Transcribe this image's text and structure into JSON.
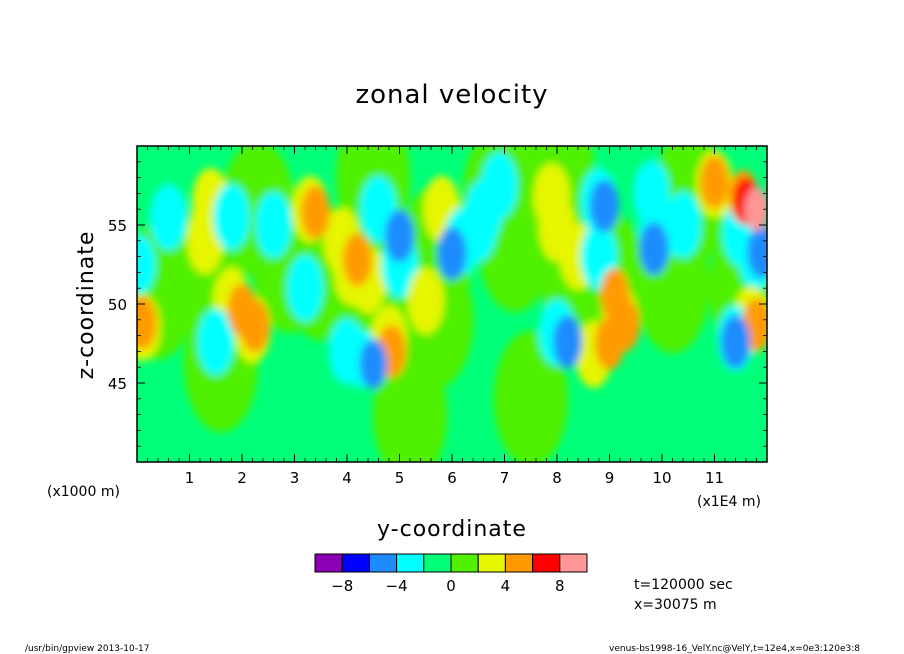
{
  "chart_data": {
    "type": "heatmap",
    "title": "zonal velocity",
    "xlabel": "y-coordinate",
    "ylabel": "z-coordinate",
    "x_unit_note": "(x1000 m)",
    "x_unit_note_right": "(x1E4 m)",
    "xlim": [
      0,
      12
    ],
    "ylim": [
      40,
      60
    ],
    "x_ticks": [
      1,
      2,
      3,
      4,
      5,
      6,
      7,
      8,
      9,
      10,
      11
    ],
    "x_tick_labels": [
      "1",
      "2",
      "3",
      "4",
      "5",
      "6",
      "7",
      "8",
      "9",
      "10",
      "11"
    ],
    "y_ticks": [
      45,
      50,
      55
    ],
    "y_tick_labels": [
      "45",
      "50",
      "55"
    ],
    "colorbar": {
      "levels": [
        -10,
        -8,
        -6,
        -4,
        -2,
        0,
        2,
        4,
        6,
        8,
        10
      ],
      "colors": [
        "#8c00b4",
        "#0000ff",
        "#1e8cff",
        "#00ffff",
        "#00ff78",
        "#50f000",
        "#e6f500",
        "#ff9b00",
        "#ff0000",
        "#ff9696"
      ],
      "tick_values": [
        -8,
        -4,
        0,
        4,
        8
      ],
      "tick_labels": [
        "−8",
        "−4",
        "0",
        "4",
        "8"
      ]
    },
    "background_value": -1,
    "features": [
      {
        "y": 0.6,
        "z": 55.5,
        "value": -3
      },
      {
        "y": 0.05,
        "z": 52.5,
        "value": -4
      },
      {
        "y": 0.4,
        "z": 50.8,
        "value": 1
      },
      {
        "y": 1.4,
        "z": 56.5,
        "value": 3
      },
      {
        "y": 1.3,
        "z": 54.0,
        "value": 3
      },
      {
        "y": 1.3,
        "z": 52.0,
        "value": 1
      },
      {
        "y": 1.8,
        "z": 50.2,
        "value": 3
      },
      {
        "y": 2.0,
        "z": 49.6,
        "value": 5
      },
      {
        "y": 2.2,
        "z": 48.4,
        "value": 3
      },
      {
        "y": 2.25,
        "z": 48.6,
        "value": 5
      },
      {
        "y": 1.5,
        "z": 47.6,
        "value": -3
      },
      {
        "y": 1.6,
        "z": 46.2,
        "value": 1
      },
      {
        "y": 1.8,
        "z": 55.5,
        "value": -3
      },
      {
        "y": 2.3,
        "z": 56.0,
        "value": 1
      },
      {
        "y": 2.6,
        "z": 55.0,
        "value": -3
      },
      {
        "y": 2.9,
        "z": 52.5,
        "value": 1
      },
      {
        "y": 3.3,
        "z": 56.0,
        "value": 3
      },
      {
        "y": 3.4,
        "z": 55.8,
        "value": 5
      },
      {
        "y": 3.9,
        "z": 54.0,
        "value": 3
      },
      {
        "y": 4.1,
        "z": 52.0,
        "value": 3
      },
      {
        "y": 4.2,
        "z": 52.8,
        "value": 5
      },
      {
        "y": 3.2,
        "z": 51.0,
        "value": -3
      },
      {
        "y": 3.5,
        "z": 52.0,
        "value": 1
      },
      {
        "y": 4.5,
        "z": 58.0,
        "value": 1
      },
      {
        "y": 4.6,
        "z": 56.0,
        "value": -3
      },
      {
        "y": 4.4,
        "z": 51.5,
        "value": 3
      },
      {
        "y": 4.6,
        "z": 50.2,
        "value": 1
      },
      {
        "y": 4.0,
        "z": 47.0,
        "value": -3
      },
      {
        "y": 4.3,
        "z": 46.5,
        "value": -4
      },
      {
        "y": 4.5,
        "z": 46.2,
        "value": -6
      },
      {
        "y": 4.8,
        "z": 47.8,
        "value": 3
      },
      {
        "y": 4.85,
        "z": 47.0,
        "value": 5
      },
      {
        "y": 5.0,
        "z": 52.5,
        "value": -3
      },
      {
        "y": 5.0,
        "z": 54.3,
        "value": -5
      },
      {
        "y": 5.5,
        "z": 50.2,
        "value": 3
      },
      {
        "y": 5.7,
        "z": 49.0,
        "value": 1
      },
      {
        "y": 5.8,
        "z": 56.0,
        "value": 3
      },
      {
        "y": 5.7,
        "z": 53.2,
        "value": 1
      },
      {
        "y": 6.2,
        "z": 54.0,
        "value": -3
      },
      {
        "y": 6.0,
        "z": 53.2,
        "value": -5
      },
      {
        "y": 6.6,
        "z": 55.8,
        "value": -3
      },
      {
        "y": 6.9,
        "z": 57.5,
        "value": -3
      },
      {
        "y": 6.5,
        "z": 54.8,
        "value": -3
      },
      {
        "y": 6.9,
        "z": 56.8,
        "value": 1
      },
      {
        "y": 7.2,
        "z": 53.8,
        "value": 1
      },
      {
        "y": 5.2,
        "z": 43.0,
        "value": 1
      },
      {
        "y": 7.5,
        "z": 44.0,
        "value": 1
      },
      {
        "y": 8.0,
        "z": 54.8,
        "value": 3
      },
      {
        "y": 7.9,
        "z": 56.8,
        "value": 3
      },
      {
        "y": 8.4,
        "z": 53.0,
        "value": 3
      },
      {
        "y": 8.0,
        "z": 58.5,
        "value": 1
      },
      {
        "y": 8.4,
        "z": 51.0,
        "value": 1
      },
      {
        "y": 8.8,
        "z": 56.5,
        "value": -3
      },
      {
        "y": 8.9,
        "z": 56.2,
        "value": -5
      },
      {
        "y": 8.8,
        "z": 53.0,
        "value": -3
      },
      {
        "y": 8.0,
        "z": 48.2,
        "value": -3
      },
      {
        "y": 8.2,
        "z": 47.6,
        "value": -5
      },
      {
        "y": 8.7,
        "z": 46.8,
        "value": 3
      },
      {
        "y": 9.0,
        "z": 47.5,
        "value": 5
      },
      {
        "y": 9.2,
        "z": 49.0,
        "value": 3
      },
      {
        "y": 9.3,
        "z": 48.7,
        "value": 5
      },
      {
        "y": 9.0,
        "z": 51.5,
        "value": 1
      },
      {
        "y": 9.1,
        "z": 50.6,
        "value": 5
      },
      {
        "y": 9.8,
        "z": 57.0,
        "value": -3
      },
      {
        "y": 9.9,
        "z": 54.5,
        "value": -3
      },
      {
        "y": 9.85,
        "z": 53.5,
        "value": -5
      },
      {
        "y": 10.4,
        "z": 55.0,
        "value": -3
      },
      {
        "y": 10.5,
        "z": 56.5,
        "value": 1
      },
      {
        "y": 10.2,
        "z": 51.2,
        "value": 1
      },
      {
        "y": 11.0,
        "z": 57.6,
        "value": 3
      },
      {
        "y": 11.0,
        "z": 57.7,
        "value": 5
      },
      {
        "y": 11.5,
        "z": 56.0,
        "value": 3
      },
      {
        "y": 11.55,
        "z": 56.8,
        "value": 5
      },
      {
        "y": 11.6,
        "z": 56.5,
        "value": 7
      },
      {
        "y": 11.8,
        "z": 56.0,
        "value": 9
      },
      {
        "y": 11.5,
        "z": 54.5,
        "value": -3
      },
      {
        "y": 11.8,
        "z": 53.0,
        "value": -3
      },
      {
        "y": 11.9,
        "z": 53.3,
        "value": -5
      },
      {
        "y": 11.6,
        "z": 51.0,
        "value": 1
      },
      {
        "y": 11.7,
        "z": 49.0,
        "value": 3
      },
      {
        "y": 11.8,
        "z": 48.7,
        "value": 5
      },
      {
        "y": 11.4,
        "z": 47.8,
        "value": -3
      },
      {
        "y": 11.4,
        "z": 47.6,
        "value": -5
      },
      {
        "y": 0.1,
        "z": 48.5,
        "value": 3
      },
      {
        "y": 0.1,
        "z": 48.8,
        "value": 5
      }
    ],
    "info": [
      "t=120000 sec",
      "x=30075 m"
    ]
  },
  "footer": {
    "left": "/usr/bin/gpview  2013-10-17",
    "right": "venus-bs1998-16_VelY.nc@VelY,t=12e4,x=0e3:120e3:8"
  }
}
